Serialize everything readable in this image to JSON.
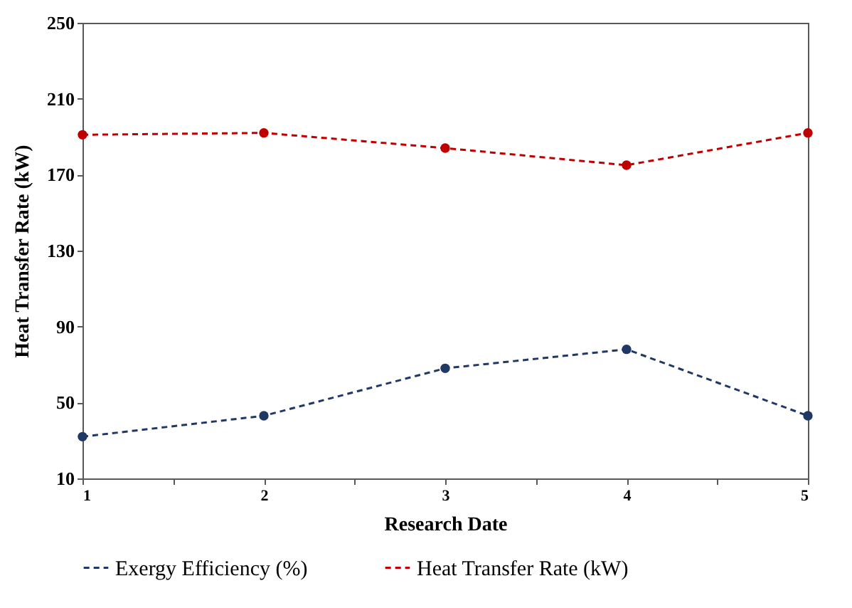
{
  "chart_data": {
    "type": "line",
    "xlabel": "Research Date",
    "ylabel": "Heat Transfer Rate (kW)",
    "x": [
      1,
      2,
      3,
      4,
      5
    ],
    "xlim": [
      1,
      5
    ],
    "xticks": [
      1,
      {
        "value": 1.5,
        "label": null
      },
      2,
      {
        "value": 2.5,
        "label": null
      },
      3,
      {
        "value": 3.5,
        "label": null
      },
      4,
      {
        "value": 4.5,
        "label": null
      },
      5
    ],
    "ylim": [
      10,
      250
    ],
    "yticks": [
      10,
      50,
      90,
      130,
      170,
      210,
      250
    ],
    "series": [
      {
        "name": "Exergy Efficiency (%)",
        "color": "#203864",
        "values": [
          32,
          43,
          68,
          78,
          43
        ]
      },
      {
        "name": "Heat Transfer Rate (kW)",
        "color": "#c00000",
        "values": [
          191,
          192,
          184,
          175,
          192
        ]
      }
    ],
    "marker": "circle",
    "line_style": "dashed",
    "legend": "bottom",
    "grid": false
  }
}
